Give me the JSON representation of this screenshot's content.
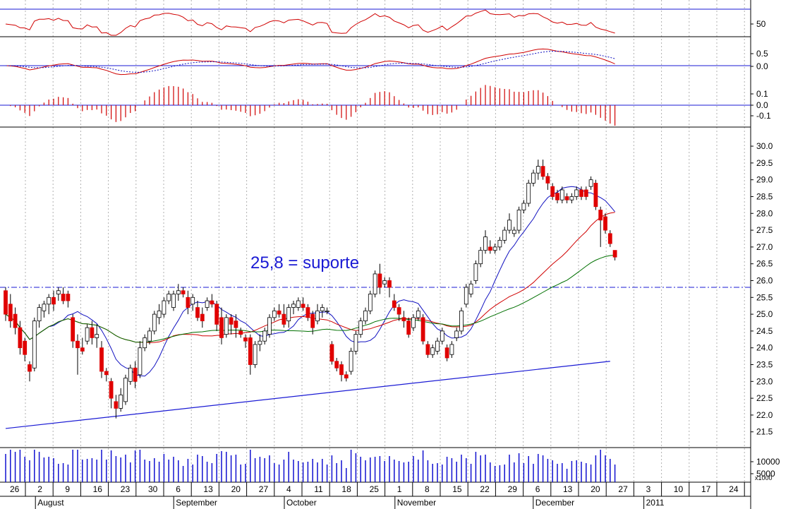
{
  "colors": {
    "up": "#ffffff",
    "down": "#e00000",
    "wick": "#000000",
    "ma_blue": "#1010c0",
    "ma_red": "#d00000",
    "ma_green": "#007000",
    "trend": "#1a1ad4",
    "grid": "#b0b0b0",
    "volume": "#1010d0",
    "macd_hist_pos": "#d00000",
    "macd_hist_neg": "#d00000"
  },
  "annotation": {
    "text": "25,8 = suporte",
    "level": 25.8
  },
  "x_axis": {
    "day_labels": [
      "26",
      "2",
      "9",
      "16",
      "23",
      "30",
      "6",
      "13",
      "20",
      "27",
      "4",
      "11",
      "18",
      "25",
      "1",
      "8",
      "15",
      "22",
      "29",
      "6",
      "13",
      "20",
      "27",
      "3",
      "10",
      "17",
      "24"
    ],
    "month_labels": [
      "August",
      "September",
      "October",
      "November",
      "December",
      "2011"
    ],
    "month_start_week": [
      1,
      6,
      10,
      14,
      19,
      23
    ]
  },
  "panels": {
    "osc": {
      "ticks": [
        "50"
      ]
    },
    "macd": {
      "ticks": [
        "0.5",
        "0.0"
      ]
    },
    "hist": {
      "ticks": [
        "0.1",
        "0.0",
        "-0.1"
      ]
    },
    "price": {
      "ticks": [
        "30.0",
        "29.5",
        "29.0",
        "28.5",
        "28.0",
        "27.5",
        "27.0",
        "26.5",
        "26.0",
        "25.5",
        "25.0",
        "24.5",
        "24.0",
        "23.5",
        "23.0",
        "22.5",
        "22.0",
        "21.5"
      ],
      "ylim": [
        21.2,
        30.4
      ]
    },
    "volume": {
      "ticks": [
        "10000",
        "5000"
      ],
      "unit": "x1000"
    }
  },
  "chart_data": {
    "type": "candlestick",
    "ylim": [
      21.2,
      30.4
    ],
    "support_level": 25.8,
    "ohlc": [
      [
        25.7,
        25.8,
        24.8,
        25.0
      ],
      [
        25.3,
        25.6,
        24.6,
        24.8
      ],
      [
        25.0,
        25.2,
        24.4,
        24.6
      ],
      [
        24.6,
        24.8,
        23.8,
        24.0
      ],
      [
        24.2,
        24.3,
        23.6,
        23.8
      ],
      [
        23.5,
        23.6,
        23.0,
        23.3
      ],
      [
        23.4,
        24.9,
        23.3,
        24.8
      ],
      [
        24.8,
        25.3,
        24.6,
        25.2
      ],
      [
        25.1,
        25.4,
        24.9,
        25.3
      ],
      [
        25.3,
        25.6,
        25.0,
        25.5
      ],
      [
        25.5,
        25.7,
        25.1,
        25.3
      ],
      [
        25.6,
        25.8,
        25.4,
        25.7
      ],
      [
        25.6,
        25.8,
        25.3,
        25.4
      ],
      [
        25.6,
        25.7,
        25.2,
        25.4
      ],
      [
        24.9,
        25.0,
        24.0,
        24.2
      ],
      [
        24.2,
        24.4,
        23.2,
        24.0
      ],
      [
        24.0,
        24.3,
        23.8,
        23.9
      ],
      [
        24.2,
        24.7,
        24.1,
        24.6
      ],
      [
        24.6,
        24.8,
        24.1,
        24.3
      ],
      [
        24.3,
        24.7,
        24.0,
        24.4
      ],
      [
        24.0,
        24.2,
        23.1,
        23.3
      ],
      [
        23.3,
        23.4,
        23.0,
        23.2
      ],
      [
        23.0,
        23.1,
        22.2,
        22.5
      ],
      [
        22.4,
        22.6,
        21.9,
        22.2
      ],
      [
        22.2,
        22.8,
        22.1,
        22.6
      ],
      [
        22.4,
        23.2,
        22.3,
        23.1
      ],
      [
        23.0,
        23.5,
        22.9,
        23.4
      ],
      [
        23.4,
        23.6,
        22.8,
        23.0
      ],
      [
        23.2,
        24.2,
        23.1,
        24.0
      ],
      [
        24.0,
        24.4,
        23.9,
        24.3
      ],
      [
        24.2,
        24.6,
        24.1,
        24.5
      ],
      [
        24.5,
        25.1,
        24.4,
        25.0
      ],
      [
        24.9,
        25.3,
        24.7,
        25.1
      ],
      [
        25.0,
        25.5,
        24.9,
        25.4
      ],
      [
        25.4,
        25.7,
        25.3,
        25.6
      ],
      [
        25.2,
        25.7,
        25.1,
        25.6
      ],
      [
        25.6,
        25.9,
        25.4,
        25.7
      ],
      [
        25.7,
        25.8,
        25.5,
        25.6
      ],
      [
        25.5,
        25.7,
        25.0,
        25.2
      ],
      [
        25.3,
        25.6,
        25.1,
        25.5
      ],
      [
        25.2,
        25.4,
        24.8,
        24.9
      ],
      [
        25.0,
        25.2,
        24.6,
        24.8
      ],
      [
        25.2,
        25.5,
        25.1,
        25.4
      ],
      [
        25.4,
        25.6,
        25.2,
        25.3
      ],
      [
        25.3,
        25.4,
        24.5,
        24.7
      ],
      [
        24.9,
        25.2,
        24.1,
        24.3
      ],
      [
        24.4,
        25.0,
        24.3,
        24.9
      ],
      [
        24.9,
        25.0,
        24.4,
        24.7
      ],
      [
        24.8,
        25.0,
        24.3,
        24.6
      ],
      [
        24.5,
        24.6,
        24.3,
        24.4
      ],
      [
        24.3,
        24.4,
        24.0,
        24.2
      ],
      [
        24.3,
        24.4,
        23.2,
        23.5
      ],
      [
        23.5,
        24.2,
        23.4,
        24.1
      ],
      [
        24.1,
        24.4,
        23.9,
        24.2
      ],
      [
        24.2,
        24.6,
        24.1,
        24.5
      ],
      [
        24.4,
        25.0,
        24.3,
        24.9
      ],
      [
        24.9,
        25.2,
        24.8,
        25.1
      ],
      [
        25.1,
        25.3,
        24.9,
        25.0
      ],
      [
        25.0,
        25.3,
        24.6,
        24.7
      ],
      [
        24.8,
        25.3,
        24.6,
        25.2
      ],
      [
        25.2,
        25.4,
        25.0,
        25.3
      ],
      [
        25.2,
        25.5,
        25.1,
        25.4
      ],
      [
        25.3,
        25.5,
        25.1,
        25.2
      ],
      [
        25.2,
        25.3,
        24.8,
        24.9
      ],
      [
        25.0,
        25.1,
        24.4,
        24.6
      ],
      [
        24.8,
        25.3,
        24.7,
        25.1
      ],
      [
        25.1,
        25.3,
        24.9,
        25.2
      ],
      [
        25.1,
        25.2,
        25.0,
        25.1
      ],
      [
        24.1,
        24.2,
        23.5,
        23.6
      ],
      [
        23.6,
        23.7,
        23.3,
        23.4
      ],
      [
        23.5,
        23.6,
        23.0,
        23.2
      ],
      [
        23.2,
        23.3,
        23.0,
        23.1
      ],
      [
        23.3,
        24.0,
        23.2,
        23.9
      ],
      [
        23.9,
        24.5,
        23.8,
        24.4
      ],
      [
        24.4,
        24.9,
        24.3,
        24.8
      ],
      [
        24.8,
        25.2,
        24.7,
        25.1
      ],
      [
        25.1,
        25.7,
        25.0,
        25.6
      ],
      [
        25.6,
        26.3,
        25.5,
        26.2
      ],
      [
        26.2,
        26.5,
        25.6,
        25.8
      ],
      [
        25.9,
        26.1,
        25.8,
        26.0
      ],
      [
        26.0,
        26.1,
        25.5,
        25.8
      ],
      [
        25.4,
        25.6,
        25.1,
        25.2
      ],
      [
        25.2,
        25.3,
        24.8,
        25.0
      ],
      [
        24.9,
        25.1,
        24.6,
        24.8
      ],
      [
        24.8,
        24.9,
        24.3,
        24.4
      ],
      [
        24.6,
        25.0,
        24.5,
        24.9
      ],
      [
        24.9,
        25.2,
        24.8,
        25.1
      ],
      [
        24.9,
        25.0,
        24.1,
        24.2
      ],
      [
        24.1,
        24.2,
        23.7,
        23.8
      ],
      [
        23.8,
        24.1,
        23.7,
        24.0
      ],
      [
        23.9,
        24.3,
        23.8,
        24.2
      ],
      [
        24.2,
        24.6,
        24.1,
        24.5
      ],
      [
        24.0,
        24.1,
        23.6,
        23.7
      ],
      [
        23.8,
        24.2,
        23.7,
        24.1
      ],
      [
        24.3,
        24.6,
        24.2,
        24.5
      ],
      [
        24.5,
        25.2,
        24.4,
        25.1
      ],
      [
        25.3,
        25.9,
        25.2,
        25.8
      ],
      [
        25.6,
        26.0,
        25.5,
        25.9
      ],
      [
        26.0,
        26.6,
        25.9,
        26.5
      ],
      [
        26.5,
        27.0,
        26.4,
        26.9
      ],
      [
        26.9,
        27.5,
        26.8,
        27.3
      ],
      [
        27.0,
        27.2,
        26.8,
        26.9
      ],
      [
        26.9,
        27.1,
        26.8,
        27.0
      ],
      [
        27.0,
        27.3,
        26.9,
        27.2
      ],
      [
        27.2,
        27.6,
        27.1,
        27.5
      ],
      [
        27.5,
        28.0,
        27.4,
        27.8
      ],
      [
        27.4,
        27.6,
        27.3,
        27.5
      ],
      [
        27.5,
        28.2,
        27.4,
        28.1
      ],
      [
        28.1,
        28.4,
        28.0,
        28.3
      ],
      [
        28.3,
        29.0,
        28.2,
        28.9
      ],
      [
        28.9,
        29.3,
        28.8,
        29.2
      ],
      [
        29.2,
        29.6,
        29.0,
        29.4
      ],
      [
        29.4,
        29.6,
        29.0,
        29.1
      ],
      [
        29.1,
        29.2,
        28.7,
        28.9
      ],
      [
        28.8,
        28.9,
        28.4,
        28.5
      ],
      [
        28.6,
        28.7,
        28.3,
        28.4
      ],
      [
        28.4,
        28.8,
        28.3,
        28.7
      ],
      [
        28.5,
        28.6,
        28.3,
        28.4
      ],
      [
        28.4,
        28.6,
        28.3,
        28.5
      ],
      [
        28.5,
        28.8,
        28.4,
        28.7
      ],
      [
        28.7,
        28.8,
        28.4,
        28.5
      ],
      [
        28.7,
        28.8,
        28.4,
        28.5
      ],
      [
        28.8,
        29.1,
        28.7,
        29.0
      ],
      [
        28.9,
        29.0,
        28.1,
        28.2
      ],
      [
        28.1,
        28.2,
        27.0,
        27.8
      ],
      [
        27.9,
        28.0,
        27.4,
        27.5
      ],
      [
        27.4,
        27.5,
        27.0,
        27.1
      ],
      [
        26.9,
        26.9,
        26.6,
        26.7
      ]
    ],
    "trendlines": [
      {
        "name": "support-trend",
        "from": [
          0,
          21.6
        ],
        "to": [
          126,
          23.6
        ]
      }
    ]
  }
}
